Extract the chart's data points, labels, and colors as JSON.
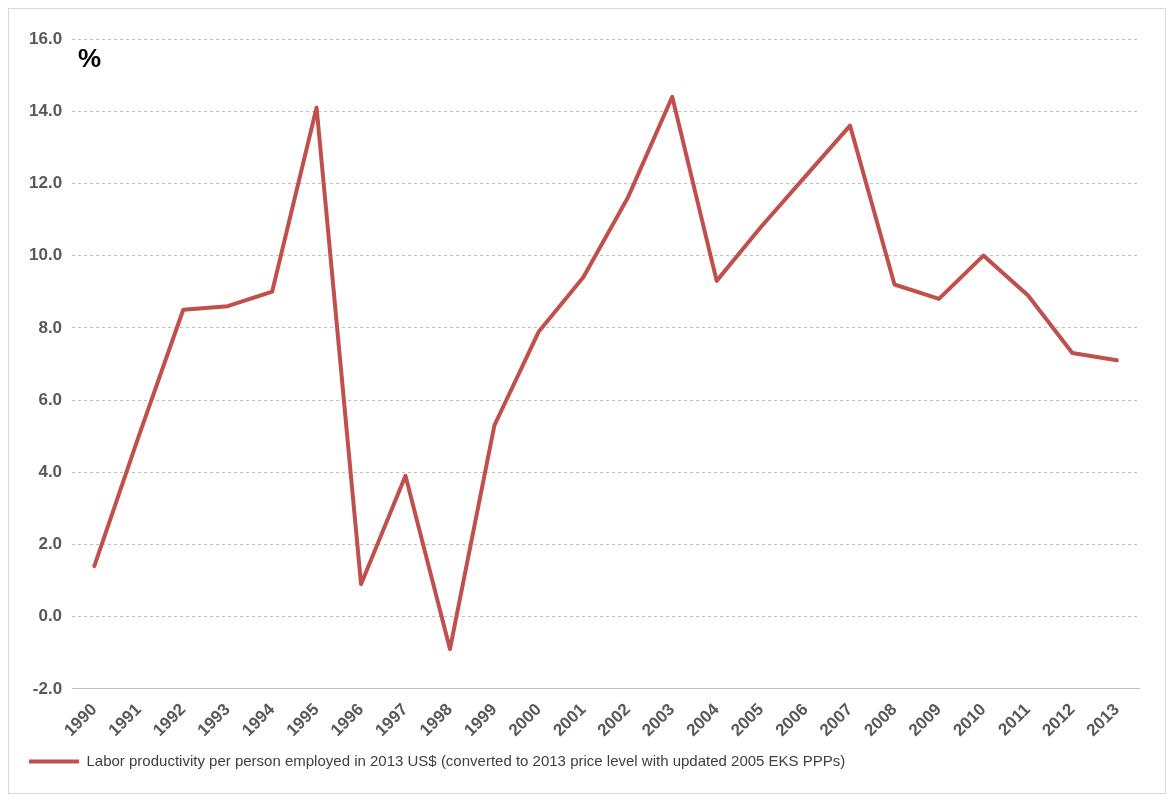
{
  "chart_data": {
    "type": "line",
    "ylabel": "%",
    "categories": [
      "1990",
      "1991",
      "1992",
      "1993",
      "1994",
      "1995",
      "1996",
      "1997",
      "1998",
      "1999",
      "2000",
      "2001",
      "2002",
      "2003",
      "2004",
      "2005",
      "2006",
      "2007",
      "2008",
      "2009",
      "2010",
      "2011",
      "2012",
      "2013"
    ],
    "series": [
      {
        "name": "Labor productivity per person employed in 2013 US$ (converted to 2013 price level with updated 2005 EKS PPPs)",
        "color": "#c0504d",
        "values": [
          1.4,
          5.0,
          8.5,
          8.6,
          9.0,
          14.1,
          0.9,
          3.9,
          -0.9,
          5.3,
          7.9,
          9.4,
          11.6,
          14.4,
          9.3,
          10.8,
          12.2,
          13.6,
          9.2,
          8.8,
          10.0,
          8.9,
          7.3,
          7.1
        ]
      }
    ],
    "ylim": [
      -2,
      16
    ],
    "yticks": [
      {
        "value": -2,
        "label": "-2.0"
      },
      {
        "value": 0,
        "label": "0.0"
      },
      {
        "value": 2,
        "label": "2.0"
      },
      {
        "value": 4,
        "label": "4.0"
      },
      {
        "value": 6,
        "label": "6.0"
      },
      {
        "value": 8,
        "label": "8.0"
      },
      {
        "value": 10,
        "label": "10.0"
      },
      {
        "value": 12,
        "label": "12.0"
      },
      {
        "value": 14,
        "label": "14.0"
      },
      {
        "value": 16,
        "label": "16.0"
      }
    ],
    "grid": "y",
    "legend": "bottom",
    "marker": "none",
    "line_style": "solid"
  }
}
